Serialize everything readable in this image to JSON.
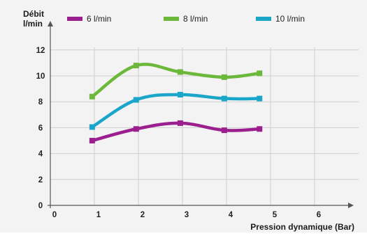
{
  "chart_data": {
    "type": "line",
    "ylabel": "Débit\nl/min",
    "xlabel": "Pression dynamique (Bar)",
    "xlim": [
      0,
      7
    ],
    "ylim": [
      0,
      12
    ],
    "x_ticks": [
      0,
      1,
      2,
      3,
      4,
      5,
      6
    ],
    "y_ticks": [
      0,
      2,
      4,
      6,
      8,
      10,
      12
    ],
    "grid": true,
    "legend_position": "top",
    "series": [
      {
        "name": "6 l/min",
        "color": "#9b1f8e",
        "x": [
          0.95,
          1.95,
          2.95,
          3.95,
          4.75
        ],
        "y": [
          5.0,
          5.9,
          6.35,
          5.8,
          5.9
        ]
      },
      {
        "name": "8 l/min",
        "color": "#6bb83a",
        "x": [
          0.95,
          1.95,
          2.95,
          3.95,
          4.75
        ],
        "y": [
          8.4,
          10.8,
          10.3,
          9.9,
          10.2
        ]
      },
      {
        "name": "10 l/min",
        "color": "#19a6c9",
        "x": [
          0.95,
          1.95,
          2.95,
          3.95,
          4.75
        ],
        "y": [
          6.05,
          8.15,
          8.55,
          8.25,
          8.25
        ]
      }
    ]
  }
}
